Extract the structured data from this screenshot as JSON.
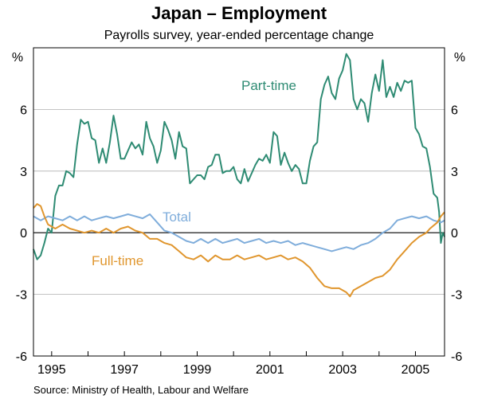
{
  "chart_data": {
    "type": "line",
    "title": "Japan – Employment",
    "subtitle": "Payrolls survey, year-ended percentage change",
    "ylabel_left": "%",
    "ylabel_right": "%",
    "ylim": [
      -6,
      9
    ],
    "yticks": [
      -6,
      -3,
      0,
      3,
      6
    ],
    "xlim": [
      1994.5,
      2005.8
    ],
    "xticks": [
      1995,
      1997,
      1999,
      2001,
      2003,
      2005
    ],
    "grid": true,
    "series": [
      {
        "name": "Part-time",
        "color": "#2e8b73",
        "points": [
          [
            1994.5,
            -0.8
          ],
          [
            1994.6,
            -1.3
          ],
          [
            1994.7,
            -1.1
          ],
          [
            1994.8,
            -0.5
          ],
          [
            1994.9,
            0.2
          ],
          [
            1995.0,
            0.0
          ],
          [
            1995.1,
            1.8
          ],
          [
            1995.2,
            2.3
          ],
          [
            1995.3,
            2.3
          ],
          [
            1995.4,
            3.0
          ],
          [
            1995.5,
            2.9
          ],
          [
            1995.6,
            2.7
          ],
          [
            1995.7,
            4.3
          ],
          [
            1995.8,
            5.5
          ],
          [
            1995.9,
            5.3
          ],
          [
            1996.0,
            5.4
          ],
          [
            1996.1,
            4.6
          ],
          [
            1996.2,
            4.5
          ],
          [
            1996.3,
            3.4
          ],
          [
            1996.4,
            4.1
          ],
          [
            1996.5,
            3.4
          ],
          [
            1996.6,
            4.4
          ],
          [
            1996.7,
            5.7
          ],
          [
            1996.8,
            4.8
          ],
          [
            1996.9,
            3.6
          ],
          [
            1997.0,
            3.6
          ],
          [
            1997.1,
            4.0
          ],
          [
            1997.2,
            4.4
          ],
          [
            1997.3,
            4.1
          ],
          [
            1997.4,
            4.3
          ],
          [
            1997.5,
            3.8
          ],
          [
            1997.6,
            5.4
          ],
          [
            1997.7,
            4.6
          ],
          [
            1997.8,
            4.2
          ],
          [
            1997.9,
            3.4
          ],
          [
            1998.0,
            4.0
          ],
          [
            1998.1,
            5.4
          ],
          [
            1998.2,
            5.0
          ],
          [
            1998.3,
            4.5
          ],
          [
            1998.4,
            3.6
          ],
          [
            1998.5,
            4.9
          ],
          [
            1998.6,
            4.2
          ],
          [
            1998.7,
            4.1
          ],
          [
            1998.8,
            2.4
          ],
          [
            1998.9,
            2.6
          ],
          [
            1999.0,
            2.8
          ],
          [
            1999.1,
            2.8
          ],
          [
            1999.2,
            2.6
          ],
          [
            1999.3,
            3.2
          ],
          [
            1999.4,
            3.3
          ],
          [
            1999.5,
            3.8
          ],
          [
            1999.6,
            3.8
          ],
          [
            1999.7,
            2.9
          ],
          [
            1999.8,
            3.0
          ],
          [
            1999.9,
            3.0
          ],
          [
            2000.0,
            3.2
          ],
          [
            2000.1,
            2.6
          ],
          [
            2000.2,
            2.4
          ],
          [
            2000.3,
            3.1
          ],
          [
            2000.4,
            2.5
          ],
          [
            2000.5,
            2.9
          ],
          [
            2000.6,
            3.3
          ],
          [
            2000.7,
            3.6
          ],
          [
            2000.8,
            3.5
          ],
          [
            2000.9,
            3.8
          ],
          [
            2001.0,
            3.4
          ],
          [
            2001.1,
            4.9
          ],
          [
            2001.2,
            4.7
          ],
          [
            2001.3,
            3.3
          ],
          [
            2001.4,
            3.9
          ],
          [
            2001.5,
            3.4
          ],
          [
            2001.6,
            3.0
          ],
          [
            2001.7,
            3.3
          ],
          [
            2001.8,
            3.1
          ],
          [
            2001.9,
            2.4
          ],
          [
            2002.0,
            2.4
          ],
          [
            2002.1,
            3.5
          ],
          [
            2002.2,
            4.2
          ],
          [
            2002.3,
            4.4
          ],
          [
            2002.4,
            6.5
          ],
          [
            2002.5,
            7.2
          ],
          [
            2002.6,
            7.6
          ],
          [
            2002.7,
            6.8
          ],
          [
            2002.8,
            6.5
          ],
          [
            2002.9,
            7.5
          ],
          [
            2003.0,
            7.9
          ],
          [
            2003.1,
            8.7
          ],
          [
            2003.2,
            8.4
          ],
          [
            2003.3,
            6.5
          ],
          [
            2003.4,
            6.0
          ],
          [
            2003.5,
            6.5
          ],
          [
            2003.6,
            6.3
          ],
          [
            2003.7,
            5.4
          ],
          [
            2003.8,
            6.8
          ],
          [
            2003.9,
            7.7
          ],
          [
            2004.0,
            6.9
          ],
          [
            2004.1,
            8.4
          ],
          [
            2004.2,
            6.6
          ],
          [
            2004.3,
            7.1
          ],
          [
            2004.4,
            6.6
          ],
          [
            2004.5,
            7.3
          ],
          [
            2004.6,
            6.9
          ],
          [
            2004.7,
            7.4
          ],
          [
            2004.8,
            7.3
          ],
          [
            2004.9,
            7.4
          ],
          [
            2005.0,
            5.1
          ],
          [
            2005.1,
            4.8
          ],
          [
            2005.2,
            4.2
          ],
          [
            2005.3,
            4.1
          ],
          [
            2005.4,
            3.2
          ],
          [
            2005.5,
            1.9
          ],
          [
            2005.6,
            1.7
          ],
          [
            2005.65,
            1.0
          ],
          [
            2005.7,
            -0.5
          ],
          [
            2005.75,
            0.0
          ],
          [
            2005.8,
            -0.2
          ]
        ]
      },
      {
        "name": "Total",
        "color": "#7faddb",
        "points": [
          [
            1994.5,
            0.8
          ],
          [
            1994.7,
            0.6
          ],
          [
            1994.9,
            0.8
          ],
          [
            1995.1,
            0.7
          ],
          [
            1995.3,
            0.6
          ],
          [
            1995.5,
            0.8
          ],
          [
            1995.7,
            0.6
          ],
          [
            1995.9,
            0.8
          ],
          [
            1996.1,
            0.6
          ],
          [
            1996.3,
            0.7
          ],
          [
            1996.5,
            0.8
          ],
          [
            1996.7,
            0.7
          ],
          [
            1996.9,
            0.8
          ],
          [
            1997.1,
            0.9
          ],
          [
            1997.3,
            0.8
          ],
          [
            1997.5,
            0.7
          ],
          [
            1997.7,
            0.9
          ],
          [
            1997.9,
            0.5
          ],
          [
            1998.1,
            0.1
          ],
          [
            1998.3,
            0.0
          ],
          [
            1998.5,
            -0.2
          ],
          [
            1998.7,
            -0.4
          ],
          [
            1998.9,
            -0.5
          ],
          [
            1999.1,
            -0.3
          ],
          [
            1999.3,
            -0.5
          ],
          [
            1999.5,
            -0.3
          ],
          [
            1999.7,
            -0.5
          ],
          [
            1999.9,
            -0.4
          ],
          [
            2000.1,
            -0.3
          ],
          [
            2000.3,
            -0.5
          ],
          [
            2000.5,
            -0.4
          ],
          [
            2000.7,
            -0.3
          ],
          [
            2000.9,
            -0.5
          ],
          [
            2001.1,
            -0.4
          ],
          [
            2001.3,
            -0.5
          ],
          [
            2001.5,
            -0.4
          ],
          [
            2001.7,
            -0.6
          ],
          [
            2001.9,
            -0.5
          ],
          [
            2002.1,
            -0.6
          ],
          [
            2002.3,
            -0.7
          ],
          [
            2002.5,
            -0.8
          ],
          [
            2002.7,
            -0.9
          ],
          [
            2002.9,
            -0.8
          ],
          [
            2003.1,
            -0.7
          ],
          [
            2003.3,
            -0.8
          ],
          [
            2003.5,
            -0.6
          ],
          [
            2003.7,
            -0.5
          ],
          [
            2003.9,
            -0.3
          ],
          [
            2004.1,
            0.0
          ],
          [
            2004.3,
            0.2
          ],
          [
            2004.5,
            0.6
          ],
          [
            2004.7,
            0.7
          ],
          [
            2004.9,
            0.8
          ],
          [
            2005.1,
            0.7
          ],
          [
            2005.3,
            0.8
          ],
          [
            2005.5,
            0.6
          ],
          [
            2005.7,
            0.5
          ],
          [
            2005.8,
            0.6
          ]
        ]
      },
      {
        "name": "Full-time",
        "color": "#e0962e",
        "points": [
          [
            1994.5,
            1.2
          ],
          [
            1994.6,
            1.4
          ],
          [
            1994.7,
            1.3
          ],
          [
            1994.8,
            0.8
          ],
          [
            1994.9,
            0.4
          ],
          [
            1995.1,
            0.2
          ],
          [
            1995.3,
            0.4
          ],
          [
            1995.5,
            0.2
          ],
          [
            1995.7,
            0.1
          ],
          [
            1995.9,
            0.0
          ],
          [
            1996.1,
            0.1
          ],
          [
            1996.3,
            0.0
          ],
          [
            1996.5,
            0.2
          ],
          [
            1996.7,
            0.0
          ],
          [
            1996.9,
            0.2
          ],
          [
            1997.1,
            0.3
          ],
          [
            1997.3,
            0.1
          ],
          [
            1997.5,
            0.0
          ],
          [
            1997.7,
            -0.3
          ],
          [
            1997.9,
            -0.3
          ],
          [
            1998.1,
            -0.5
          ],
          [
            1998.3,
            -0.6
          ],
          [
            1998.5,
            -0.9
          ],
          [
            1998.7,
            -1.2
          ],
          [
            1998.9,
            -1.3
          ],
          [
            1999.1,
            -1.1
          ],
          [
            1999.3,
            -1.4
          ],
          [
            1999.5,
            -1.1
          ],
          [
            1999.7,
            -1.3
          ],
          [
            1999.9,
            -1.3
          ],
          [
            2000.1,
            -1.1
          ],
          [
            2000.3,
            -1.3
          ],
          [
            2000.5,
            -1.2
          ],
          [
            2000.7,
            -1.1
          ],
          [
            2000.9,
            -1.3
          ],
          [
            2001.1,
            -1.2
          ],
          [
            2001.3,
            -1.1
          ],
          [
            2001.5,
            -1.3
          ],
          [
            2001.7,
            -1.2
          ],
          [
            2001.9,
            -1.4
          ],
          [
            2002.1,
            -1.7
          ],
          [
            2002.3,
            -2.2
          ],
          [
            2002.5,
            -2.6
          ],
          [
            2002.7,
            -2.7
          ],
          [
            2002.9,
            -2.7
          ],
          [
            2003.1,
            -2.9
          ],
          [
            2003.2,
            -3.1
          ],
          [
            2003.3,
            -2.8
          ],
          [
            2003.5,
            -2.6
          ],
          [
            2003.7,
            -2.4
          ],
          [
            2003.9,
            -2.2
          ],
          [
            2004.1,
            -2.1
          ],
          [
            2004.3,
            -1.8
          ],
          [
            2004.5,
            -1.3
          ],
          [
            2004.7,
            -0.9
          ],
          [
            2004.9,
            -0.5
          ],
          [
            2005.1,
            -0.2
          ],
          [
            2005.3,
            0.0
          ],
          [
            2005.4,
            0.2
          ],
          [
            2005.6,
            0.5
          ],
          [
            2005.7,
            0.8
          ],
          [
            2005.8,
            1.0
          ]
        ]
      }
    ]
  },
  "labels": {
    "part_time": "Part-time",
    "total": "Total",
    "full_time": "Full-time"
  },
  "source": "Source: Ministry of Health, Labour and Welfare",
  "colors": {
    "part_time": "#2e8b73",
    "total": "#7faddb",
    "full_time": "#e0962e",
    "grid": "#b0b0b0",
    "axis": "#000000"
  }
}
